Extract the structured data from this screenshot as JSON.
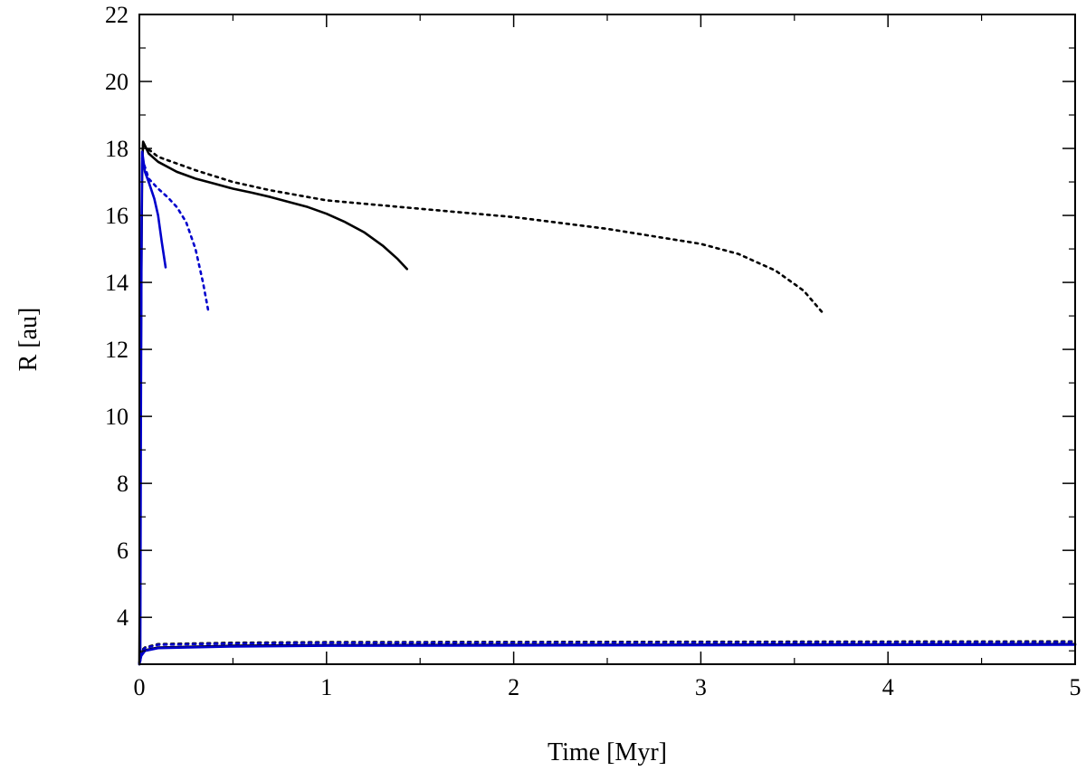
{
  "chart_data": {
    "type": "line",
    "title": "",
    "xlabel": "Time [Myr]",
    "ylabel": "R [au]",
    "xlim": [
      0,
      5
    ],
    "ylim": [
      2.6,
      22
    ],
    "xticks": [
      0,
      1,
      2,
      3,
      4,
      5
    ],
    "yticks": [
      4,
      6,
      8,
      10,
      12,
      14,
      16,
      18,
      20,
      22
    ],
    "grid": false,
    "legend": "none",
    "series": [
      {
        "color": "#000000",
        "dash": "solid",
        "points": [
          [
            0,
            2.6
          ],
          [
            0.005,
            8
          ],
          [
            0.01,
            14
          ],
          [
            0.015,
            17.5
          ],
          [
            0.02,
            18.2
          ],
          [
            0.05,
            17.85
          ],
          [
            0.1,
            17.6
          ],
          [
            0.2,
            17.3
          ],
          [
            0.3,
            17.1
          ],
          [
            0.4,
            16.95
          ],
          [
            0.5,
            16.8
          ],
          [
            0.6,
            16.68
          ],
          [
            0.7,
            16.55
          ],
          [
            0.8,
            16.4
          ],
          [
            0.9,
            16.25
          ],
          [
            1.0,
            16.05
          ],
          [
            1.1,
            15.8
          ],
          [
            1.2,
            15.5
          ],
          [
            1.3,
            15.1
          ],
          [
            1.38,
            14.7
          ],
          [
            1.43,
            14.4
          ]
        ]
      },
      {
        "color": "#000000",
        "dash": "dotted",
        "points": [
          [
            0.02,
            18.1
          ],
          [
            0.1,
            17.75
          ],
          [
            0.3,
            17.35
          ],
          [
            0.5,
            17.0
          ],
          [
            0.7,
            16.75
          ],
          [
            1.0,
            16.45
          ],
          [
            1.5,
            16.2
          ],
          [
            2.0,
            15.95
          ],
          [
            2.5,
            15.6
          ],
          [
            3.0,
            15.15
          ],
          [
            3.2,
            14.85
          ],
          [
            3.4,
            14.35
          ],
          [
            3.55,
            13.75
          ],
          [
            3.65,
            13.1
          ]
        ]
      },
      {
        "color": "#0000cc",
        "dash": "solid",
        "points": [
          [
            0.005,
            2.7
          ],
          [
            0.008,
            10
          ],
          [
            0.012,
            16
          ],
          [
            0.015,
            17.9
          ],
          [
            0.03,
            17.3
          ],
          [
            0.05,
            17.0
          ],
          [
            0.08,
            16.5
          ],
          [
            0.1,
            16.0
          ],
          [
            0.12,
            15.2
          ],
          [
            0.14,
            14.45
          ]
        ]
      },
      {
        "color": "#0000cc",
        "dash": "dotted",
        "points": [
          [
            0.015,
            17.7
          ],
          [
            0.05,
            17.1
          ],
          [
            0.1,
            16.8
          ],
          [
            0.15,
            16.55
          ],
          [
            0.2,
            16.25
          ],
          [
            0.25,
            15.8
          ],
          [
            0.3,
            15.0
          ],
          [
            0.34,
            14.0
          ],
          [
            0.37,
            13.1
          ]
        ]
      },
      {
        "color": "#000000",
        "dash": "solid",
        "points": [
          [
            0,
            2.6
          ],
          [
            0.01,
            2.9
          ],
          [
            0.03,
            3.02
          ],
          [
            0.1,
            3.1
          ],
          [
            0.5,
            3.15
          ],
          [
            1,
            3.17
          ],
          [
            5,
            3.2
          ]
        ]
      },
      {
        "color": "#000000",
        "dash": "dotted",
        "points": [
          [
            0,
            2.65
          ],
          [
            0.01,
            3.0
          ],
          [
            0.03,
            3.1
          ],
          [
            0.1,
            3.2
          ],
          [
            0.5,
            3.24
          ],
          [
            1,
            3.26
          ],
          [
            5,
            3.28
          ]
        ]
      },
      {
        "color": "#0000cc",
        "dash": "solid",
        "points": [
          [
            0,
            2.6
          ],
          [
            0.01,
            2.85
          ],
          [
            0.03,
            3.0
          ],
          [
            0.1,
            3.08
          ],
          [
            0.5,
            3.13
          ],
          [
            1,
            3.15
          ],
          [
            5,
            3.18
          ]
        ]
      },
      {
        "color": "#0000cc",
        "dash": "dotted",
        "points": [
          [
            0,
            2.62
          ],
          [
            0.01,
            2.95
          ],
          [
            0.03,
            3.08
          ],
          [
            0.1,
            3.18
          ],
          [
            0.5,
            3.22
          ],
          [
            1,
            3.24
          ],
          [
            5,
            3.26
          ]
        ]
      }
    ]
  }
}
